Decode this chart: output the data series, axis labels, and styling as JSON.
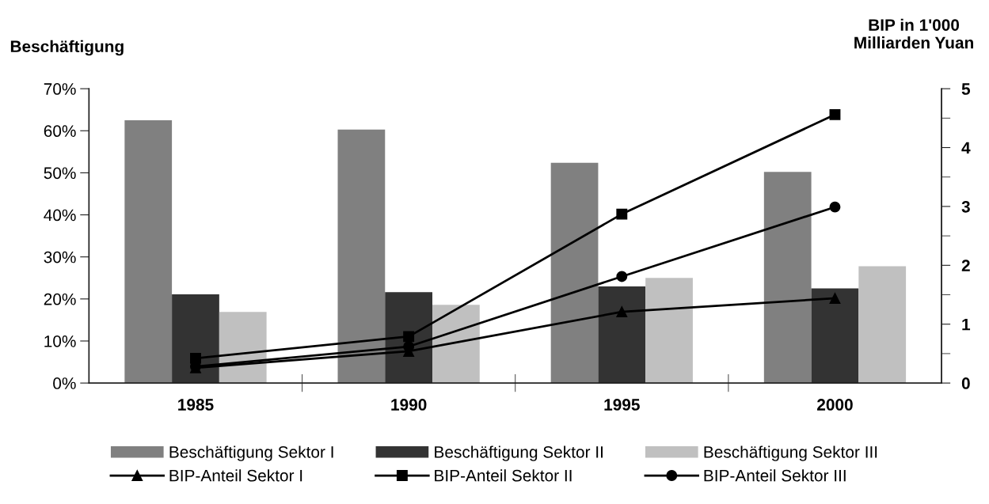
{
  "chart_data": {
    "type": "bar",
    "ylabel": "Beschäftigung",
    "y2label": "BIP in 1'000\nMilliarden Yuan",
    "categories": [
      "1985",
      "1990",
      "1995",
      "2000"
    ],
    "series": [
      {
        "name": "Beschäftigung Sektor I",
        "color": "#808080",
        "values": [
          62.5,
          60.3,
          52.4,
          50.2
        ]
      },
      {
        "name": "Beschäftigung Sektor II",
        "color": "#333333",
        "values": [
          21.1,
          21.6,
          23.0,
          22.5
        ]
      },
      {
        "name": "Beschäftigung Sektor III",
        "color": "#c0c0c0",
        "values": [
          16.9,
          18.6,
          25.0,
          27.8
        ]
      },
      {
        "name": "BIP-Anteil Sektor I",
        "type": "line",
        "axis": "y2",
        "marker": "triangle",
        "color": "#000000",
        "values": [
          0.26,
          0.54,
          1.21,
          1.44
        ]
      },
      {
        "name": "BIP-Anteil Sektor II",
        "type": "line",
        "axis": "y2",
        "marker": "square",
        "color": "#000000",
        "values": [
          0.42,
          0.79,
          2.87,
          4.56
        ]
      },
      {
        "name": "BIP-Anteil Sektor III",
        "type": "line",
        "axis": "y2",
        "marker": "circle",
        "color": "#000000",
        "values": [
          0.28,
          0.62,
          1.81,
          2.99
        ]
      }
    ],
    "ylim": [
      0,
      70
    ],
    "yticks": [
      {
        "value": 0,
        "label": "0%"
      },
      {
        "value": 10,
        "label": "10%"
      },
      {
        "value": 20,
        "label": "20%"
      },
      {
        "value": 30,
        "label": "30%"
      },
      {
        "value": 40,
        "label": "40%"
      },
      {
        "value": 50,
        "label": "50%"
      },
      {
        "value": 60,
        "label": "60%"
      },
      {
        "value": 70,
        "label": "70%"
      }
    ],
    "y2lim": [
      0,
      5
    ],
    "y2ticks": [
      0,
      {
        "value": 0.5,
        "label": null
      },
      1,
      {
        "value": 1.5,
        "label": null
      },
      2,
      {
        "value": 2.5,
        "label": null
      },
      3,
      {
        "value": 3.5,
        "label": null
      },
      4,
      {
        "value": 4.5,
        "label": null
      },
      5
    ],
    "grid": false,
    "legend": "bottom"
  }
}
